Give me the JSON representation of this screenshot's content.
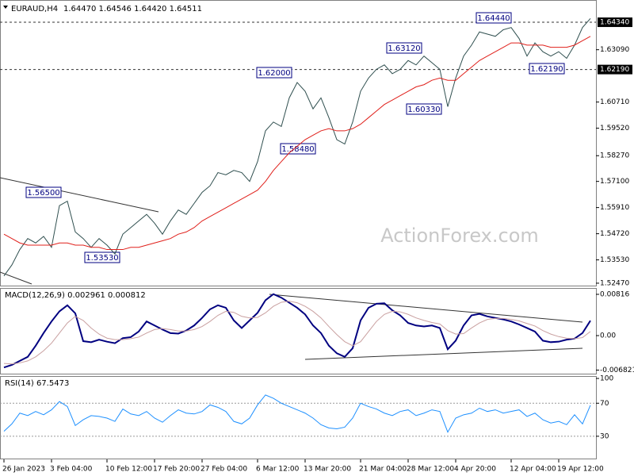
{
  "chart_data": [
    {
      "type": "line",
      "info": [
        "EURAUD,H4",
        "1.64470 1.64546 1.64420 1.64511"
      ],
      "watermark": "ActionForex.com",
      "ylim": [
        1.5236,
        1.6528
      ],
      "yticks": [
        {
          "value": 1.6309,
          "label": "1.63090"
        },
        {
          "value": 1.6071,
          "label": "1.60710"
        },
        {
          "value": 1.5952,
          "label": "1.59520"
        },
        {
          "value": 1.5827,
          "label": "1.58270"
        },
        {
          "value": 1.571,
          "label": "1.57100"
        },
        {
          "value": 1.5591,
          "label": "1.55910"
        },
        {
          "value": 1.5472,
          "label": "1.54720"
        },
        {
          "value": 1.5353,
          "label": "1.53530"
        },
        {
          "value": 1.5247,
          "label": "1.52470"
        }
      ],
      "levels": [
        {
          "value": 1.6434,
          "label": "1.64340"
        },
        {
          "value": 1.6219,
          "label": "1.62190"
        }
      ],
      "annotations": [
        "1.56500",
        "1.53530",
        "1.62000",
        "1.58480",
        "1.63120",
        "1.60330",
        "1.64440",
        "1.62190"
      ],
      "series": [
        {
          "color": "#2f4f4f",
          "values": [
            1.528,
            1.533,
            1.54,
            1.545,
            1.543,
            1.546,
            1.541,
            1.56,
            1.562,
            1.548,
            1.545,
            1.541,
            1.545,
            1.542,
            1.538,
            1.547,
            1.55,
            1.553,
            1.556,
            1.552,
            1.547,
            1.553,
            1.558,
            1.556,
            1.561,
            1.566,
            1.569,
            1.575,
            1.574,
            1.576,
            1.575,
            1.571,
            1.58,
            1.594,
            1.598,
            1.596,
            1.609,
            1.616,
            1.612,
            1.604,
            1.609,
            1.6,
            1.59,
            1.588,
            1.598,
            1.612,
            1.618,
            1.622,
            1.624,
            1.62,
            1.622,
            1.626,
            1.624,
            1.628,
            1.625,
            1.622,
            1.605,
            1.618,
            1.628,
            1.633,
            1.639,
            1.638,
            1.637,
            1.64,
            1.641,
            1.636,
            1.628,
            1.634,
            1.63,
            1.628,
            1.63,
            1.627,
            1.633,
            1.641,
            1.6451
          ]
        },
        {
          "color": "#e0201b",
          "values": [
            1.547,
            1.545,
            1.543,
            1.542,
            1.542,
            1.542,
            1.542,
            1.543,
            1.543,
            1.542,
            1.542,
            1.541,
            1.541,
            1.54,
            1.54,
            1.54,
            1.541,
            1.541,
            1.542,
            1.543,
            1.544,
            1.545,
            1.547,
            1.548,
            1.55,
            1.553,
            1.555,
            1.557,
            1.559,
            1.561,
            1.563,
            1.565,
            1.567,
            1.571,
            1.576,
            1.58,
            1.584,
            1.587,
            1.59,
            1.592,
            1.594,
            1.595,
            1.594,
            1.594,
            1.595,
            1.597,
            1.6,
            1.603,
            1.606,
            1.608,
            1.61,
            1.612,
            1.614,
            1.615,
            1.617,
            1.618,
            1.617,
            1.617,
            1.62,
            1.623,
            1.626,
            1.628,
            1.63,
            1.632,
            1.634,
            1.634,
            1.633,
            1.633,
            1.633,
            1.632,
            1.632,
            1.632,
            1.633,
            1.635,
            1.637
          ]
        }
      ]
    },
    {
      "type": "line",
      "label": "MACD(12,26,9) 0.002961 0.000812",
      "ylim": [
        -0.00737,
        0.00926
      ],
      "yticks": [
        0.00816,
        {
          "value": 0,
          "label": "0.00"
        },
        -0.006821
      ],
      "series": [
        {
          "color": "#000080",
          "values": [
            -0.0063,
            -0.0058,
            -0.005,
            -0.0042,
            -0.002,
            0.0005,
            0.0028,
            0.0048,
            0.006,
            0.0044,
            -0.0011,
            -0.0013,
            -0.0008,
            -0.0012,
            -0.0015,
            -0.0005,
            -0.0003,
            0.0008,
            0.0028,
            0.002,
            0.0012,
            0.0005,
            0.0004,
            0.001,
            0.002,
            0.0035,
            0.0052,
            0.006,
            0.0055,
            0.003,
            0.0015,
            0.003,
            0.0045,
            0.007,
            0.0082,
            0.0075,
            0.0065,
            0.0055,
            0.0042,
            0.002,
            0.0005,
            -0.002,
            -0.0035,
            -0.0042,
            -0.0025,
            0.003,
            0.0055,
            0.0063,
            0.0064,
            0.005,
            0.004,
            0.0025,
            0.002,
            0.0018,
            0.002,
            0.0015,
            -0.0027,
            -0.001,
            0.002,
            0.004,
            0.0043,
            0.0038,
            0.0035,
            0.0032,
            0.0028,
            0.0022,
            0.0015,
            0.0008,
            -0.001,
            -0.0013,
            -0.0012,
            -0.0008,
            -0.0006,
            0.0005,
            0.002961
          ]
        },
        {
          "color": "#c9a0a0",
          "values": [
            -0.0055,
            -0.0056,
            -0.0054,
            -0.005,
            -0.0042,
            -0.003,
            -0.0015,
            0.0005,
            0.0025,
            0.0038,
            0.003,
            0.0015,
            0.0003,
            -0.0005,
            -0.0008,
            -0.0008,
            -0.0006,
            -0.0003,
            0.0005,
            0.0012,
            0.0014,
            0.0012,
            0.0009,
            0.0009,
            0.0012,
            0.0018,
            0.0028,
            0.004,
            0.0048,
            0.0046,
            0.0038,
            0.0035,
            0.0036,
            0.0045,
            0.0058,
            0.0066,
            0.0068,
            0.0065,
            0.0058,
            0.0048,
            0.0035,
            0.0018,
            0.0002,
            -0.0012,
            -0.002,
            -0.0012,
            0.0008,
            0.0028,
            0.0042,
            0.0048,
            0.0047,
            0.0042,
            0.0035,
            0.003,
            0.0026,
            0.0023,
            0.001,
            0.0003,
            0.0004,
            0.0015,
            0.0025,
            0.0032,
            0.0034,
            0.0034,
            0.0032,
            0.0029,
            0.0024,
            0.0019,
            0.001,
            0.0003,
            -0.0002,
            -0.0005,
            -0.0006,
            -0.0004,
            0.000812
          ]
        }
      ]
    },
    {
      "type": "line",
      "label": "RSI(14) 67.5473",
      "ylim": [
        3,
        101
      ],
      "yticks": [
        100,
        70,
        30
      ],
      "categories": [
        "26 Jan 2023",
        null,
        null,
        null,
        null,
        null,
        "3 Feb 04:00",
        null,
        null,
        null,
        null,
        null,
        null,
        "10 Feb 12:00",
        null,
        null,
        null,
        null,
        null,
        "17 Feb 20:00",
        null,
        null,
        null,
        null,
        null,
        "27 Feb 04:00",
        null,
        null,
        null,
        null,
        null,
        null,
        "6 Mar 12:00",
        null,
        null,
        null,
        null,
        null,
        "13 Mar 20:00",
        null,
        null,
        null,
        null,
        null,
        null,
        "21 Mar 04:00",
        null,
        null,
        null,
        null,
        null,
        "28 Mar 12:00",
        null,
        null,
        null,
        null,
        null,
        "4 Apr 20:00",
        null,
        null,
        null,
        null,
        null,
        null,
        "12 Apr 04:00",
        null,
        null,
        null,
        null,
        null,
        "19 Apr 12:00",
        null,
        null,
        null,
        null
      ],
      "series": [
        {
          "color": "#1e90ff",
          "values": [
            36,
            45,
            58,
            55,
            60,
            56,
            62,
            72,
            66,
            43,
            50,
            55,
            54,
            52,
            48,
            63,
            57,
            55,
            60,
            52,
            47,
            55,
            62,
            58,
            57,
            60,
            68,
            65,
            60,
            48,
            45,
            52,
            68,
            80,
            76,
            70,
            66,
            62,
            58,
            52,
            44,
            40,
            39,
            41,
            52,
            70,
            66,
            63,
            58,
            55,
            60,
            62,
            55,
            58,
            62,
            60,
            35,
            52,
            56,
            58,
            64,
            60,
            62,
            58,
            60,
            62,
            54,
            58,
            50,
            46,
            48,
            44,
            56,
            45,
            67.5473
          ]
        }
      ]
    }
  ]
}
